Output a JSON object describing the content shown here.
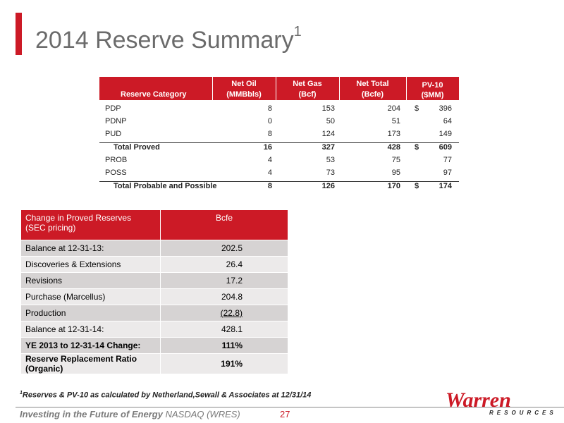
{
  "slide": {
    "title": "2014 Reserve Summary",
    "title_sup": "1"
  },
  "reserve_table": {
    "headers": {
      "category": "Reserve Category",
      "oil_1": "Net Oil",
      "oil_2": "(MMBbls)",
      "gas_1": "Net Gas",
      "gas_2": "(Bcf)",
      "total_1": "Net Total",
      "total_2": "(Bcfe)",
      "pv_1": "PV-10",
      "pv_2": "($MM)"
    },
    "rows": [
      {
        "label": "PDP",
        "oil": "8",
        "gas": "153",
        "total": "204",
        "dollar": "$",
        "pv": "396"
      },
      {
        "label": "PDNP",
        "oil": "0",
        "gas": "50",
        "total": "51",
        "dollar": "",
        "pv": "64"
      },
      {
        "label": "PUD",
        "oil": "8",
        "gas": "124",
        "total": "173",
        "dollar": "",
        "pv": "149"
      },
      {
        "label": "Total Proved",
        "oil": "16",
        "gas": "327",
        "total": "428",
        "dollar": "$",
        "pv": "609"
      },
      {
        "label": "PROB",
        "oil": "4",
        "gas": "53",
        "total": "75",
        "dollar": "",
        "pv": "77"
      },
      {
        "label": "POSS",
        "oil": "4",
        "gas": "73",
        "total": "95",
        "dollar": "",
        "pv": "97"
      },
      {
        "label": "Total Probable and Possible",
        "oil": "8",
        "gas": "126",
        "total": "170",
        "dollar": "$",
        "pv": "174"
      }
    ]
  },
  "change_table": {
    "header": {
      "title_1": "Change in Proved Reserves",
      "title_2": "(SEC pricing)",
      "unit": "Bcfe"
    },
    "rows": [
      {
        "label": "Balance at 12-31-13:",
        "value": "202.5"
      },
      {
        "label": "Discoveries & Extensions",
        "value": "26.4"
      },
      {
        "label": "Revisions",
        "value": "17.2"
      },
      {
        "label": "Purchase (Marcellus)",
        "value": "204.8"
      },
      {
        "label": "Production",
        "value": "(22.8)"
      },
      {
        "label": "Balance at 12-31-14:",
        "value": "428.1"
      },
      {
        "label": "YE 2013 to 12-31-14 Change:",
        "value": "111%"
      },
      {
        "label": "Reserve Replacement Ratio (Organic)",
        "value": "191%"
      }
    ]
  },
  "footnote": {
    "marker": "1",
    "text": "Reserves & PV-10 as calculated by Netherland,Sewall & Associates at 12/31/14"
  },
  "footer": {
    "tagline": "Investing in the Future of Energy",
    "ticker": "NASDAQ (WRES)",
    "page": "27"
  },
  "logo": {
    "name": "Warren",
    "sub": "RESOURCES"
  },
  "colors": {
    "accent": "#cc1a26",
    "row_dark": "#d6d3d3",
    "row_light": "#eceaea"
  }
}
